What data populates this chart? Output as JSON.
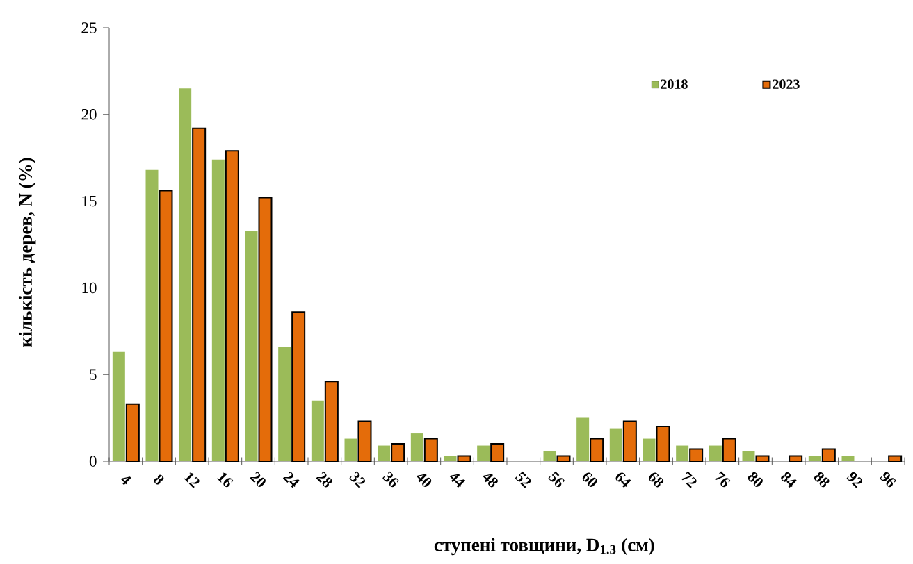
{
  "chart_data": {
    "type": "bar",
    "xlabel": "ступені товщини, D$_{1.3}$ (см)",
    "ylabel": "кількість дерев, N (%)",
    "categories": [
      "4",
      "8",
      "12",
      "16",
      "20",
      "24",
      "28",
      "32",
      "36",
      "40",
      "44",
      "48",
      "52",
      "56",
      "60",
      "64",
      "68",
      "72",
      "76",
      "80",
      "84",
      "88",
      "92",
      "96"
    ],
    "series": [
      {
        "name": "2018",
        "color": "#9bbb59",
        "values": [
          6.3,
          16.8,
          21.5,
          17.4,
          13.3,
          6.6,
          3.5,
          1.3,
          0.9,
          1.6,
          0.3,
          0.9,
          null,
          0.6,
          2.5,
          1.9,
          1.3,
          0.9,
          0.9,
          0.6,
          null,
          0.3,
          0.3,
          null
        ]
      },
      {
        "name": "2023",
        "color": "#e46c0a",
        "values": [
          3.3,
          15.6,
          19.2,
          17.9,
          15.2,
          8.6,
          4.6,
          2.3,
          1.0,
          1.3,
          0.3,
          1.0,
          null,
          0.3,
          1.3,
          2.3,
          2.0,
          0.7,
          1.3,
          0.3,
          0.3,
          0.7,
          null,
          0.3
        ]
      }
    ],
    "ylim": [
      0,
      25
    ],
    "yticks": [
      0,
      5,
      10,
      15,
      20,
      25
    ],
    "legend": "top right"
  }
}
